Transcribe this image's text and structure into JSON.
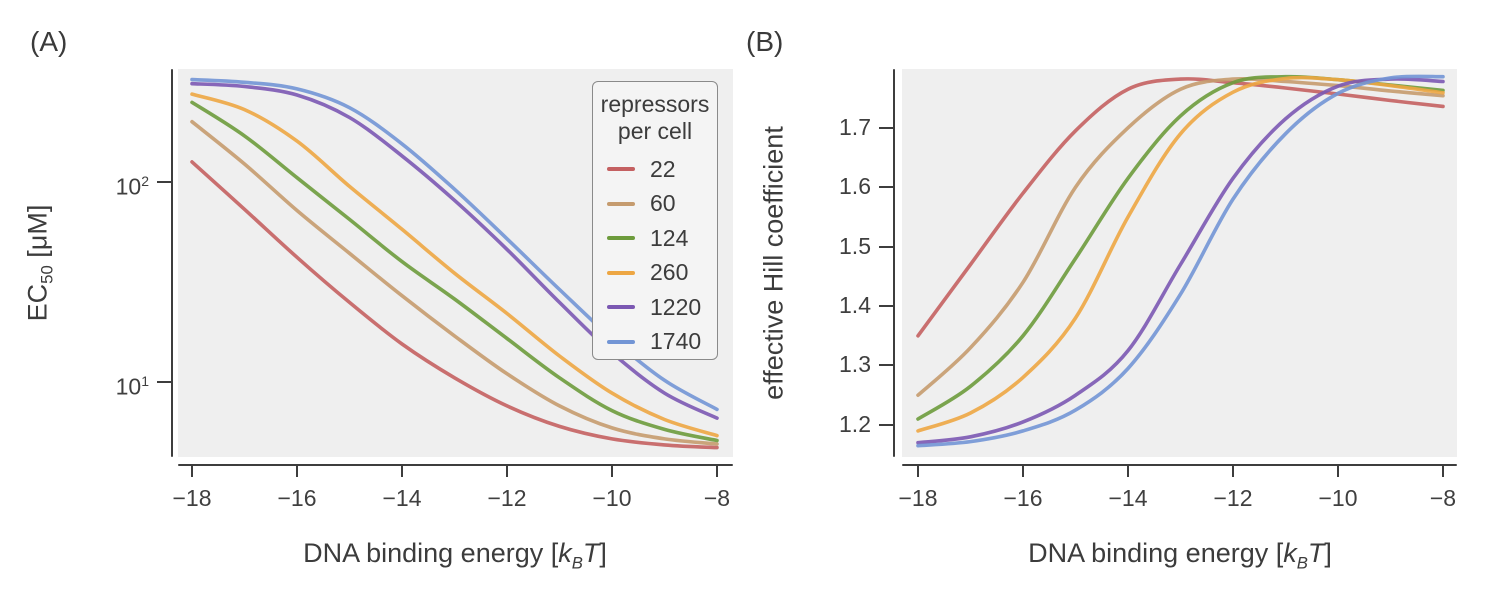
{
  "panels": {
    "a": {
      "letter": "(A)",
      "ylabel": {
        "prefix": "EC",
        "sub": "50",
        "suffix": " [μM]"
      }
    },
    "b": {
      "letter": "(B)",
      "ylabel": "effective Hill coefficient"
    }
  },
  "xlabel": {
    "prefix": "DNA binding energy [",
    "k": "k",
    "ksub": "B",
    "T": "T",
    "suffix": "]"
  },
  "legend": {
    "title_line1": "repressors",
    "title_line2": "per cell",
    "entries": [
      {
        "label": "22",
        "color": "#c46061"
      },
      {
        "label": "60",
        "color": "#c59b6e"
      },
      {
        "label": "124",
        "color": "#6d9b3c"
      },
      {
        "label": "260",
        "color": "#eda643"
      },
      {
        "label": "1220",
        "color": "#7b58b2"
      },
      {
        "label": "1740",
        "color": "#7295d5"
      }
    ]
  },
  "axes": {
    "x_ticks": {
      "values": [
        -18,
        -16,
        -14,
        -12,
        -10,
        -8
      ],
      "labels": [
        "−18",
        "−16",
        "−14",
        "−12",
        "−10",
        "−8"
      ]
    },
    "a_y_ticks": [
      {
        "base": "10",
        "exp": "2",
        "value": 100
      },
      {
        "base": "10",
        "exp": "1",
        "value": 10
      }
    ],
    "b_y_ticks": {
      "values": [
        1.7,
        1.6,
        1.5,
        1.4,
        1.3,
        1.2
      ],
      "labels": [
        "1.7",
        "1.6",
        "1.5",
        "1.4",
        "1.3",
        "1.2"
      ]
    }
  },
  "chart_data": [
    {
      "id": "A",
      "type": "line",
      "title": "",
      "xlabel": "DNA binding energy [kBT]",
      "ylabel": "EC50 [μM]",
      "yscale": "log",
      "xlim": [
        -18.267,
        -7.695
      ],
      "ylim": [
        4.22,
        367
      ],
      "x_tick_values": [
        -18,
        -16,
        -14,
        -12,
        -10,
        -8
      ],
      "y_tick_values": [
        100,
        10
      ],
      "legend_title": "repressors per cell",
      "legend_position": "upper right inside plot",
      "grid": false,
      "x": [
        -18,
        -17,
        -16,
        -15,
        -14,
        -13,
        -12,
        -11,
        -10,
        -9,
        -8
      ],
      "series": [
        {
          "name": "22",
          "color": "#c46061",
          "values": [
            126,
            73,
            42,
            25,
            15.5,
            10.5,
            7.6,
            6.0,
            5.2,
            4.85,
            4.7
          ]
        },
        {
          "name": "60",
          "color": "#c59b6e",
          "values": [
            200,
            123,
            72,
            44,
            27,
            17,
            11,
            7.6,
            5.9,
            5.2,
            4.9
          ]
        },
        {
          "name": "124",
          "color": "#6d9b3c",
          "values": [
            250,
            170,
            105,
            65,
            40,
            26,
            16.5,
            10.5,
            7.2,
            5.8,
            5.1
          ]
        },
        {
          "name": "260",
          "color": "#eda643",
          "values": [
            275,
            230,
            160,
            95,
            58,
            35,
            22,
            13.5,
            8.8,
            6.5,
            5.4
          ]
        },
        {
          "name": "1220",
          "color": "#7b58b2",
          "values": [
            310,
            300,
            272,
            210,
            135,
            81,
            46,
            25,
            14,
            8.8,
            6.6
          ]
        },
        {
          "name": "1740",
          "color": "#7295d5",
          "values": [
            325,
            315,
            292,
            235,
            155,
            92,
            52,
            29,
            16.5,
            10.2,
            7.3
          ]
        }
      ]
    },
    {
      "id": "B",
      "type": "line",
      "title": "",
      "xlabel": "DNA binding energy [kBT]",
      "ylabel": "effective Hill coefficient",
      "yscale": "linear",
      "xlim": [
        -18.305,
        -7.733
      ],
      "ylim": [
        1.146,
        1.799
      ],
      "x_tick_values": [
        -18,
        -16,
        -14,
        -12,
        -10,
        -8
      ],
      "y_tick_values": [
        1.2,
        1.3,
        1.4,
        1.5,
        1.6,
        1.7
      ],
      "grid": false,
      "x": [
        -18,
        -17,
        -16,
        -15,
        -14,
        -13,
        -12,
        -11,
        -10,
        -9,
        -8
      ],
      "series": [
        {
          "name": "22",
          "color": "#c46061",
          "values": [
            1.35,
            1.47,
            1.59,
            1.695,
            1.765,
            1.782,
            1.776,
            1.767,
            1.757,
            1.746,
            1.736
          ]
        },
        {
          "name": "60",
          "color": "#c59b6e",
          "values": [
            1.25,
            1.33,
            1.44,
            1.6,
            1.7,
            1.765,
            1.782,
            1.778,
            1.771,
            1.762,
            1.754
          ]
        },
        {
          "name": "124",
          "color": "#6d9b3c",
          "values": [
            1.21,
            1.265,
            1.35,
            1.48,
            1.615,
            1.72,
            1.776,
            1.786,
            1.781,
            1.772,
            1.763
          ]
        },
        {
          "name": "260",
          "color": "#eda643",
          "values": [
            1.19,
            1.22,
            1.28,
            1.38,
            1.55,
            1.69,
            1.76,
            1.783,
            1.781,
            1.771,
            1.759
          ]
        },
        {
          "name": "1220",
          "color": "#7b58b2",
          "values": [
            1.17,
            1.18,
            1.205,
            1.25,
            1.325,
            1.47,
            1.615,
            1.715,
            1.77,
            1.782,
            1.778
          ]
        },
        {
          "name": "1740",
          "color": "#7295d5",
          "values": [
            1.165,
            1.172,
            1.19,
            1.225,
            1.295,
            1.42,
            1.58,
            1.69,
            1.758,
            1.784,
            1.786
          ]
        }
      ]
    }
  ]
}
